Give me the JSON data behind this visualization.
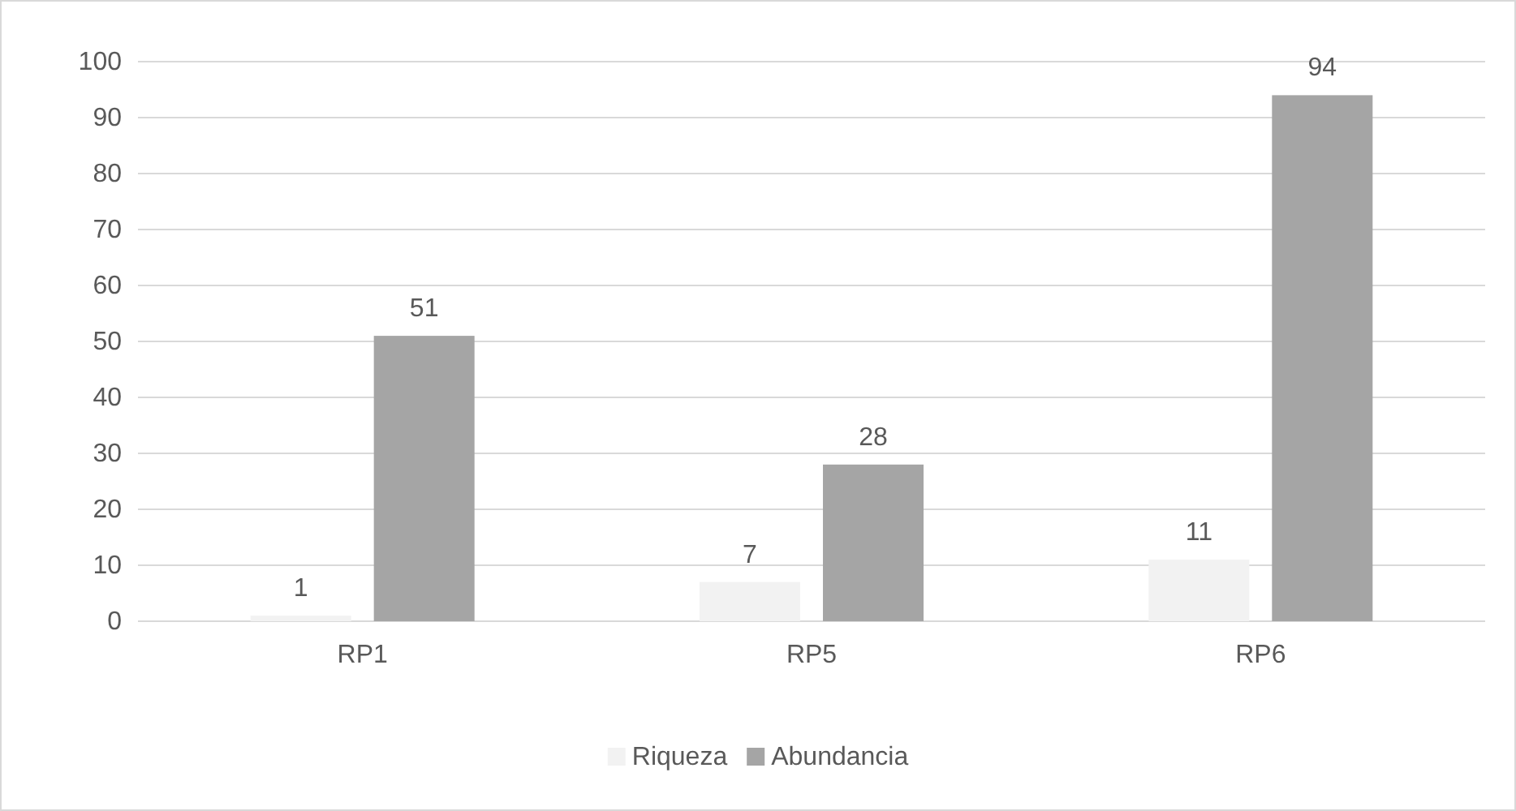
{
  "chart_data": {
    "type": "bar",
    "categories": [
      "RP1",
      "RP5",
      "RP6"
    ],
    "series": [
      {
        "name": "Riqueza",
        "color": "#f2f2f2",
        "values": [
          1,
          7,
          11
        ]
      },
      {
        "name": "Abundancia",
        "color": "#a5a5a5",
        "values": [
          51,
          28,
          94
        ]
      }
    ],
    "ylim": [
      0,
      100
    ],
    "yticks": [
      0,
      10,
      20,
      30,
      40,
      50,
      60,
      70,
      80,
      90,
      100
    ],
    "grid": "y",
    "legend": "bottom",
    "data_labels": true
  }
}
